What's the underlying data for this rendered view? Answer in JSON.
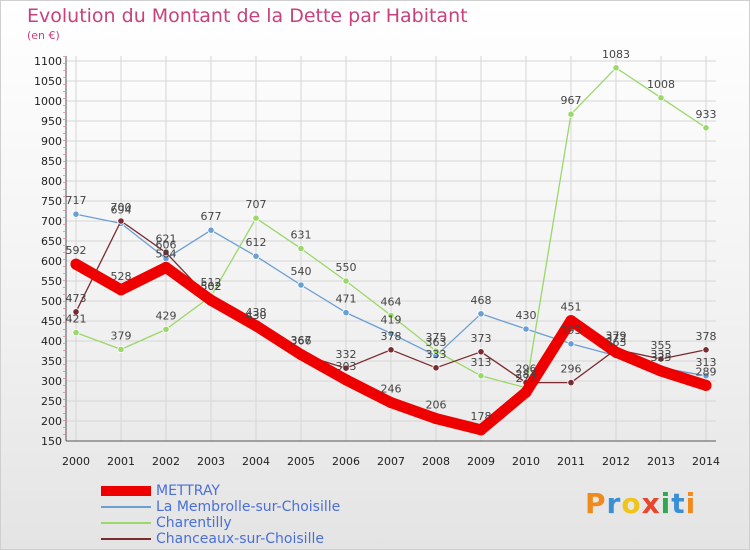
{
  "title": "Evolution du Montant de la Dette par Habitant",
  "unit_label": "(en €)",
  "brand": {
    "text": "Proxiti",
    "letter_colors": [
      "#f08a1c",
      "#3b8fd6",
      "#f0c419",
      "#e8452c",
      "#2fa84f",
      "#3b8fd6",
      "#f08a1c"
    ]
  },
  "chart_data": {
    "type": "line",
    "title": "Evolution du Montant de la Dette par Habitant",
    "ylabel": "(en €)",
    "xlabel": "",
    "x": [
      2000,
      2001,
      2002,
      2003,
      2004,
      2005,
      2006,
      2007,
      2008,
      2009,
      2010,
      2011,
      2012,
      2013,
      2014
    ],
    "x_tick_labels": [
      "2000",
      "2001",
      "2002",
      "2003",
      "2004",
      "2005",
      "2006",
      "2007",
      "2008",
      "2009",
      "2010",
      "2011",
      "2012",
      "2013",
      "2014"
    ],
    "ylim": [
      150,
      1100
    ],
    "y_ticks": [
      150,
      200,
      250,
      300,
      350,
      400,
      450,
      500,
      550,
      600,
      650,
      700,
      750,
      800,
      850,
      900,
      950,
      1000,
      1050,
      1100
    ],
    "grid": true,
    "legend_position": "bottom-left",
    "series": [
      {
        "name": "La Membrolle-sur-Choisille",
        "color": "#6a9fd4",
        "style": "thin",
        "values": [
          717,
          694,
          606,
          677,
          612,
          540,
          471,
          419,
          363,
          468,
          430,
          393,
          363,
          333,
          313
        ],
        "labels": [
          "717",
          "694",
          "606",
          "677",
          "612",
          "540",
          "471",
          "419",
          "363",
          "468",
          "430",
          "393",
          "363",
          "333",
          "313"
        ]
      },
      {
        "name": "Charentilly",
        "color": "#9ad86a",
        "style": "thin",
        "values": [
          421,
          379,
          429,
          512,
          707,
          631,
          550,
          464,
          375,
          313,
          283,
          967,
          1083,
          1008,
          933
        ],
        "labels": [
          "421",
          "379",
          "429",
          "512",
          "707",
          "631",
          "550",
          "464",
          "375",
          "313",
          "283",
          "967",
          "1083",
          "1008",
          "933"
        ]
      },
      {
        "name": "Chanceaux-sur-Choisille",
        "color": "#7a2a30",
        "style": "thin",
        "values": [
          473,
          700,
          621,
          502,
          430,
          367,
          332,
          378,
          333,
          373,
          296,
          296,
          379,
          355,
          378
        ],
        "labels": [
          "473",
          "700",
          "621",
          "502",
          "430",
          "367",
          "332",
          "378",
          "333",
          "373",
          "296",
          "296",
          "379",
          "355",
          "378"
        ]
      },
      {
        "name": "METTRAY",
        "color": "#ee0000",
        "style": "thick",
        "values": [
          592,
          528,
          584,
          502,
          438,
          366,
          303,
          246,
          206,
          178,
          272,
          451,
          372,
          325,
          289
        ],
        "labels": [
          "592",
          "528",
          "584",
          "502",
          "438",
          "366",
          "303",
          "246",
          "206",
          "178",
          "272",
          "451",
          "372",
          "325",
          "289"
        ]
      }
    ],
    "legend_entries": [
      {
        "name": "METTRAY",
        "color": "#ee0000",
        "style": "thick"
      },
      {
        "name": "La Membrolle-sur-Choisille",
        "color": "#6a9fd4",
        "style": "thin"
      },
      {
        "name": "Charentilly",
        "color": "#9ad86a",
        "style": "thin"
      },
      {
        "name": "Chanceaux-sur-Choisille",
        "color": "#7a2a30",
        "style": "thin"
      }
    ]
  }
}
